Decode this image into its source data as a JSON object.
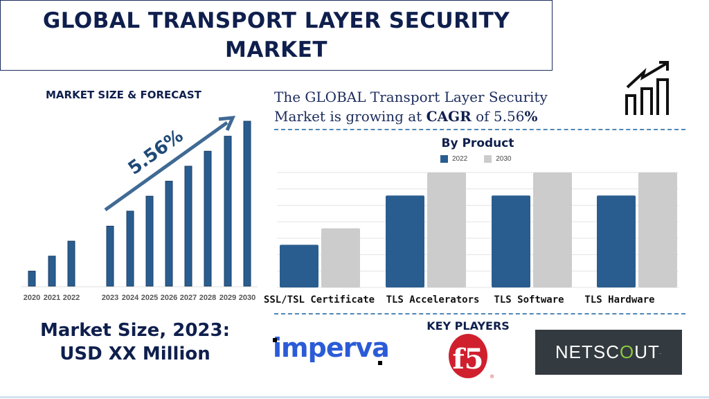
{
  "header": {
    "title_line1": "GLOBAL TRANSPORT LAYER SECURITY",
    "title_line2": "MARKET"
  },
  "forecast": {
    "title": "MARKET SIZE & FORECAST",
    "cagr_badge": "5.56%"
  },
  "summary": {
    "line1": "The GLOBAL Transport Layer Security",
    "line2_pre": "Market is growing at ",
    "cagr_word": "CAGR",
    "line2_mid": " of 5.56",
    "pct": "%"
  },
  "market_size": {
    "line1": "Market Size, 2023:",
    "line2": "USD XX Million"
  },
  "key_players": {
    "title": "KEY PLAYERS",
    "logos": [
      "imperva",
      "f5",
      "NETSCOUT"
    ]
  },
  "colors": {
    "navy": "#0f1f4d",
    "bar_blue": "#2a5d8f",
    "bar_gray": "#cccccc",
    "netscout_bg": "#333a40",
    "f5_red": "#d0202e",
    "imperva_blue": "#2b5bd6"
  },
  "icons": [
    "growth-chart-icon"
  ],
  "chart_data": [
    {
      "type": "bar",
      "title": "",
      "categories": [
        "2020",
        "2021",
        "2022",
        "2023",
        "2024",
        "2025",
        "2026",
        "2027",
        "2028",
        "2029",
        "2030"
      ],
      "values": [
        1,
        2,
        3,
        4,
        5,
        6,
        7,
        8,
        9,
        10,
        11
      ],
      "annotation": "5.56%",
      "grid": false
    },
    {
      "type": "bar",
      "title": "By Product",
      "categories": [
        "SSL/TSL Certificate",
        "TLS Accelerators",
        "TLS Software",
        "TLS Hardware"
      ],
      "series": [
        {
          "name": "2022",
          "values": [
            2.6,
            5.6,
            5.6,
            5.6
          ]
        },
        {
          "name": "2030",
          "values": [
            3.6,
            7,
            7,
            7
          ]
        }
      ],
      "ylim": [
        0,
        7
      ],
      "grid": true,
      "legend": "top-center"
    }
  ]
}
